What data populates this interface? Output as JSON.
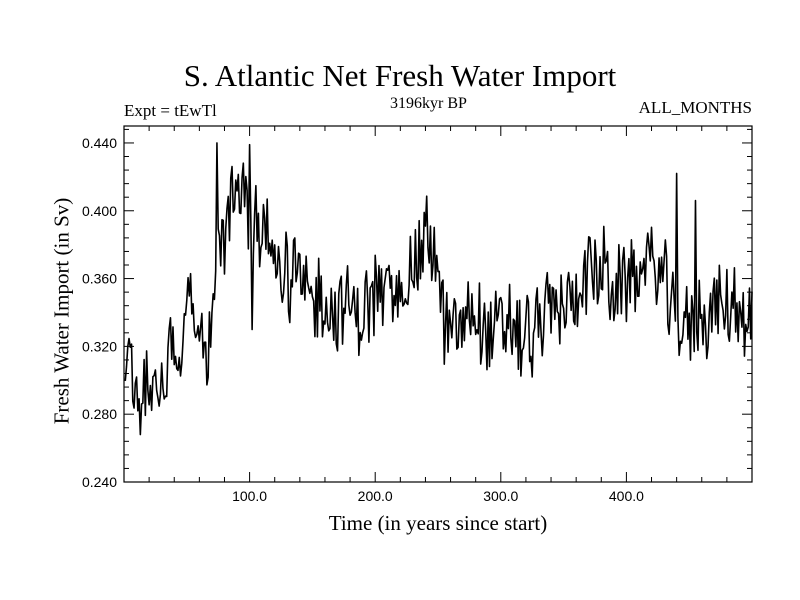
{
  "chart_data": {
    "type": "line",
    "title": "S. Atlantic Net Fresh Water Import",
    "subtitle_left": "Expt = tEwTl",
    "subtitle_center": "3196kyr BP",
    "subtitle_right": "ALL_MONTHS",
    "xlabel": "Time (in years since start)",
    "ylabel": "Fresh Water Import (in Sv)",
    "xlim": [
      0,
      500
    ],
    "ylim": [
      0.24,
      0.45
    ],
    "x_ticks": [
      100,
      200,
      300,
      400
    ],
    "x_tick_labels": [
      "100.0",
      "200.0",
      "300.0",
      "400.0"
    ],
    "y_ticks": [
      0.24,
      0.28,
      0.32,
      0.36,
      0.4,
      0.44
    ],
    "y_tick_labels": [
      "0.240",
      "0.280",
      "0.320",
      "0.360",
      "0.400",
      "0.440"
    ],
    "series": [
      {
        "name": "Fresh Water Import",
        "x_start": 1,
        "x_step": 5,
        "values": [
          0.318,
          0.302,
          0.298,
          0.305,
          0.29,
          0.3,
          0.296,
          0.312,
          0.33,
          0.318,
          0.352,
          0.34,
          0.33,
          0.318,
          0.344,
          0.372,
          0.392,
          0.405,
          0.415,
          0.4,
          0.396,
          0.392,
          0.388,
          0.38,
          0.374,
          0.366,
          0.358,
          0.366,
          0.356,
          0.35,
          0.344,
          0.352,
          0.345,
          0.34,
          0.338,
          0.346,
          0.34,
          0.335,
          0.344,
          0.346,
          0.352,
          0.348,
          0.355,
          0.348,
          0.356,
          0.365,
          0.37,
          0.372,
          0.385,
          0.376,
          0.352,
          0.33,
          0.328,
          0.332,
          0.334,
          0.342,
          0.34,
          0.332,
          0.326,
          0.33,
          0.328,
          0.338,
          0.33,
          0.322,
          0.328,
          0.336,
          0.334,
          0.338,
          0.345,
          0.34,
          0.345,
          0.344,
          0.352,
          0.362,
          0.368,
          0.362,
          0.366,
          0.356,
          0.352,
          0.354,
          0.36,
          0.362,
          0.366,
          0.37,
          0.364,
          0.368,
          0.356,
          0.338,
          0.333,
          0.33,
          0.332,
          0.338,
          0.336,
          0.34,
          0.345,
          0.34,
          0.342,
          0.346,
          0.34,
          0.336
        ],
        "noise_amplitude": 0.022,
        "spikes": [
          {
            "x": 74,
            "value": 0.44
          },
          {
            "x": 100,
            "value": 0.439
          },
          {
            "x": 102,
            "value": 0.33
          },
          {
            "x": 13,
            "value": 0.268
          },
          {
            "x": 244,
            "value": 0.391
          },
          {
            "x": 325,
            "value": 0.302
          },
          {
            "x": 440,
            "value": 0.422
          },
          {
            "x": 455,
            "value": 0.406
          }
        ]
      }
    ]
  }
}
